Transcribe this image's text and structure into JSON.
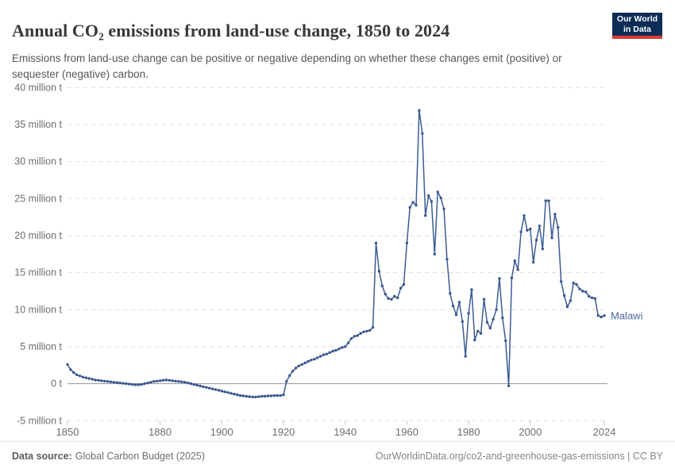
{
  "header": {
    "title": "Annual CO₂ emissions from land-use change, 1850 to 2024",
    "subtitle": "Emissions from land-use change can be positive or negative depending on whether these changes emit (positive) or sequester (negative) carbon."
  },
  "logo": {
    "line1": "Our World",
    "line2": "in Data",
    "bg_color": "#0c2d56",
    "bar_color": "#dc3a35"
  },
  "footer": {
    "source_label": "Data source:",
    "source_value": "Global Carbon Budget (2025)",
    "right_text": "OurWorldinData.org/co2-and-greenhouse-gas-emissions | CC BY"
  },
  "chart_data": {
    "type": "line",
    "title": "Annual CO₂ emissions from land-use change, 1850 to 2024",
    "entity": "Malawi",
    "unit": "million t",
    "grid": true,
    "legend_position": "end-of-line",
    "xlim": [
      1850,
      2024
    ],
    "ylim": [
      -5,
      40
    ],
    "x_ticks": [
      1850,
      1880,
      1900,
      1920,
      1940,
      1960,
      1980,
      2000,
      2024
    ],
    "y_ticks": [
      {
        "value": 40,
        "label": "40 million t"
      },
      {
        "value": 35,
        "label": "35 million t"
      },
      {
        "value": 30,
        "label": "30 million t"
      },
      {
        "value": 25,
        "label": "25 million t"
      },
      {
        "value": 20,
        "label": "20 million t"
      },
      {
        "value": 15,
        "label": "15 million t"
      },
      {
        "value": 10,
        "label": "10 million t"
      },
      {
        "value": 5,
        "label": "5 million t"
      },
      {
        "value": 0,
        "label": "0 t"
      },
      {
        "value": -5,
        "label": "-5 million t"
      }
    ],
    "colors": {
      "line": "#3d5c96",
      "marker": "#3a5890",
      "entity_label": "#4f66a0",
      "gridline": "#dedede",
      "zero_line": "#949494",
      "tick": "#c4c4c4",
      "axis_text": "#6e6e6e"
    },
    "series": [
      {
        "name": "Malawi",
        "year_start": 1850,
        "year_step": 1,
        "values": [
          2.6,
          1.9,
          1.5,
          1.2,
          1.05,
          0.9,
          0.8,
          0.7,
          0.6,
          0.5,
          0.45,
          0.4,
          0.35,
          0.3,
          0.25,
          0.2,
          0.15,
          0.1,
          0.05,
          0,
          -0.05,
          -0.1,
          -0.15,
          -0.15,
          -0.1,
          0,
          0.1,
          0.2,
          0.3,
          0.35,
          0.4,
          0.45,
          0.5,
          0.45,
          0.4,
          0.35,
          0.3,
          0.25,
          0.2,
          0.1,
          0,
          -0.1,
          -0.2,
          -0.3,
          -0.4,
          -0.5,
          -0.6,
          -0.7,
          -0.8,
          -0.9,
          -1.0,
          -1.1,
          -1.2,
          -1.3,
          -1.4,
          -1.5,
          -1.6,
          -1.65,
          -1.7,
          -1.75,
          -1.8,
          -1.8,
          -1.75,
          -1.7,
          -1.7,
          -1.65,
          -1.65,
          -1.6,
          -1.6,
          -1.6,
          -1.5,
          0.3,
          1.1,
          1.7,
          2.1,
          2.4,
          2.6,
          2.8,
          3.0,
          3.2,
          3.3,
          3.5,
          3.7,
          3.9,
          4.0,
          4.2,
          4.4,
          4.5,
          4.7,
          4.9,
          5.0,
          5.5,
          6.1,
          6.4,
          6.5,
          6.8,
          7.0,
          7.1,
          7.2,
          7.6,
          19.0,
          15.2,
          13.2,
          12.1,
          11.5,
          11.4,
          11.8,
          11.6,
          12.9,
          13.4,
          19.0,
          23.8,
          24.5,
          24.1,
          36.9,
          33.8,
          22.7,
          25.4,
          24.6,
          17.5,
          25.9,
          25.1,
          23.6,
          16.8,
          12.2,
          10.5,
          9.3,
          11.0,
          8.4,
          3.7,
          9.5,
          12.7,
          5.9,
          7.1,
          6.8,
          11.4,
          8.3,
          7.5,
          8.7,
          10.0,
          14.2,
          8.9,
          5.8,
          -0.3,
          14.3,
          16.6,
          15.4,
          20.5,
          22.7,
          20.7,
          20.9,
          16.4,
          19.4,
          21.3,
          18.2,
          24.7,
          24.7,
          19.7,
          22.9,
          21.1,
          13.8,
          11.9,
          10.4,
          11.2,
          13.6,
          13.4,
          12.8,
          12.5,
          12.4,
          11.8,
          11.6,
          11.5,
          9.2,
          9.0,
          9.2
        ]
      }
    ]
  }
}
